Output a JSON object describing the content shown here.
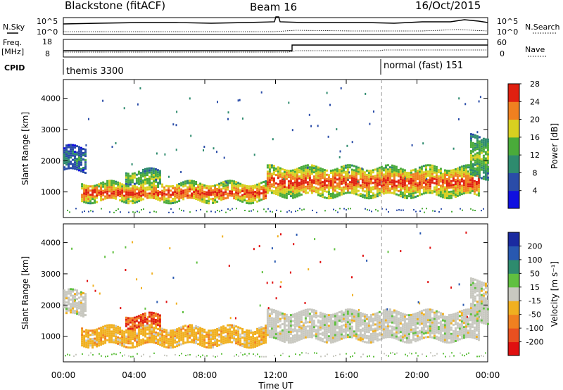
{
  "header": {
    "site": "Blackstone (fitACF)",
    "beam": "Beam 16",
    "date": "16/Oct/2015"
  },
  "strips": {
    "nsky_label": "N.Sky",
    "nsearch_label": "N.Search",
    "nsky_ticks": [
      "10^5",
      "10^0"
    ],
    "nsearch_ticks": [
      "10^5",
      "10^0"
    ],
    "freq_label": "Freq.",
    "freq_unit": "[MHz]",
    "freq_ticks": [
      "18",
      "8"
    ],
    "nave_label": "Nave",
    "nave_ticks": [
      "60",
      "0"
    ],
    "cpid_label": "CPID",
    "cpid_segments": [
      {
        "name": "themis 3300",
        "start_hour": 0
      },
      {
        "name": "normal (fast) 151",
        "start_hour": 18
      }
    ]
  },
  "chart_data": [
    {
      "type": "heatmap",
      "panel": "power",
      "ylabel": "Slant Range [km]",
      "xlabel": "",
      "ylim": [
        180,
        4600
      ],
      "xlim_hours": [
        0,
        24
      ],
      "yticks": [
        "1000",
        "2000",
        "3000",
        "4000"
      ],
      "colorbar_label": "Power [dB]",
      "colorbar_ticks": [
        "4",
        "8",
        "12",
        "16",
        "20",
        "24",
        "28"
      ],
      "colorbar_colors": [
        "#1010e0",
        "#2a4ca8",
        "#2e8b6e",
        "#4aab3a",
        "#d8d020",
        "#f08020",
        "#e02010"
      ],
      "echo_bands": [
        {
          "t0": 0.0,
          "t1": 1.2,
          "r0": 1650,
          "r1": 2450,
          "level": "low"
        },
        {
          "t0": 1.0,
          "t1": 11.5,
          "r0": 700,
          "r1": 1300,
          "level": "high"
        },
        {
          "t0": 3.5,
          "t1": 5.5,
          "r0": 1300,
          "r1": 1700,
          "level": "mid"
        },
        {
          "t0": 11.5,
          "t1": 23.5,
          "r0": 900,
          "r1": 1800,
          "level": "high"
        },
        {
          "t0": 23.0,
          "t1": 24.0,
          "r0": 1500,
          "r1": 2800,
          "level": "mid"
        }
      ]
    },
    {
      "type": "heatmap",
      "panel": "velocity",
      "ylabel": "Slant Range [km]",
      "xlabel": "Time UT",
      "ylim": [
        180,
        4600
      ],
      "xlim_hours": [
        0,
        24
      ],
      "yticks": [
        "1000",
        "2000",
        "3000",
        "4000"
      ],
      "xticks": [
        "00:00",
        "04:00",
        "08:00",
        "12:00",
        "16:00",
        "20:00",
        "00:00"
      ],
      "colorbar_label": "Velocity [m s⁻¹]",
      "colorbar_ticks": [
        "200",
        "100",
        "50",
        "15",
        "-15",
        "-50",
        "-100",
        "-200"
      ],
      "colorbar_colors": [
        "#1a2aa0",
        "#2858b0",
        "#2e8b6e",
        "#60c040",
        "#c8c8c0",
        "#f0b020",
        "#f08020",
        "#e85020",
        "#e01010"
      ],
      "echo_bands": [
        {
          "t0": 0.0,
          "t1": 1.2,
          "r0": 1650,
          "r1": 2450,
          "level": "grey"
        },
        {
          "t0": 1.0,
          "t1": 11.5,
          "r0": 700,
          "r1": 1300,
          "level": "orange"
        },
        {
          "t0": 3.5,
          "t1": 5.5,
          "r0": 1300,
          "r1": 1700,
          "level": "red"
        },
        {
          "t0": 11.5,
          "t1": 23.5,
          "r0": 900,
          "r1": 1800,
          "level": "grey"
        },
        {
          "t0": 23.0,
          "t1": 24.0,
          "r0": 1500,
          "r1": 2800,
          "level": "grey"
        }
      ]
    }
  ]
}
